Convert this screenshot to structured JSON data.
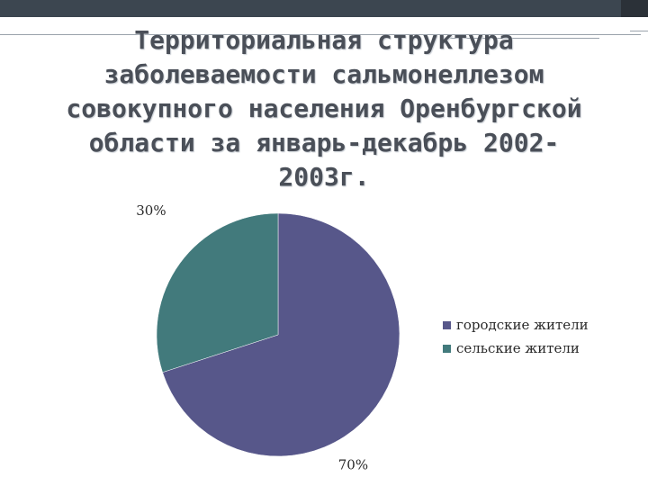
{
  "title_lines": [
    "Территориальная структура",
    "заболеваемости сальмонеллезом",
    "совокупного населения Оренбургской",
    "области за январь-декабрь 2002-",
    "2003г."
  ],
  "chart_data": {
    "type": "pie",
    "title": "Территориальная структура заболеваемости сальмонеллезом совокупного населения Оренбургской области за январь-декабрь 2002-2003г.",
    "slices": [
      {
        "label": "городские жители",
        "value": 70,
        "data_label": "70%",
        "color": "#57578a"
      },
      {
        "label": "сельские жители",
        "value": 30,
        "data_label": "30%",
        "color": "#427a7c"
      }
    ],
    "legend_position": "right"
  }
}
